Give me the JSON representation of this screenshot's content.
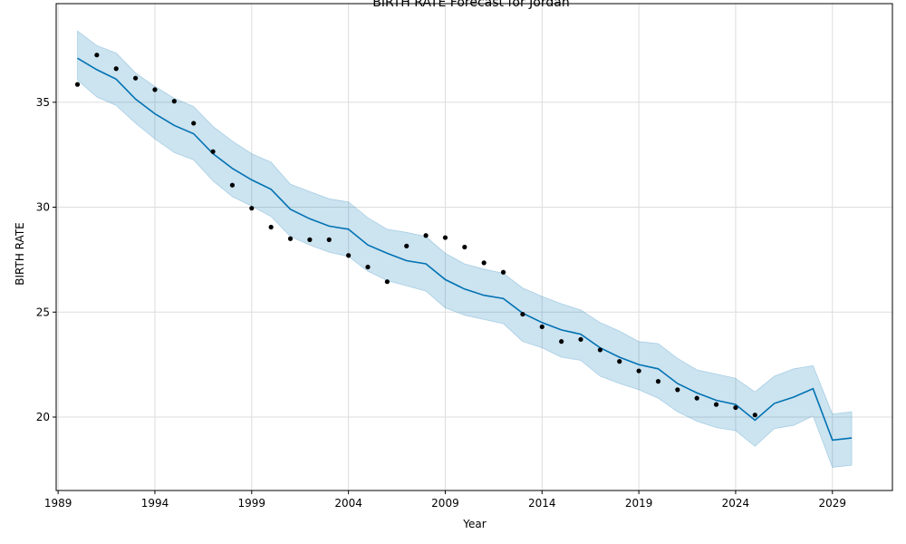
{
  "chart_data": {
    "type": "line",
    "title": "BIRTH RATE Forecast for Jordan",
    "xlabel": "Year",
    "ylabel": "BIRTH RATE",
    "xlim": [
      1988.9,
      2032.1
    ],
    "ylim": [
      16.5,
      39.7
    ],
    "grid": true,
    "x_ticks": [
      1989,
      1994,
      1999,
      2004,
      2009,
      2014,
      2019,
      2024,
      2029
    ],
    "y_ticks": [
      20,
      25,
      30,
      35
    ],
    "colors": {
      "forecast": "#0072B2",
      "band": "#0072B2",
      "actual": "#000000",
      "grid": "#dddddd"
    },
    "forecast": {
      "x": [
        1990,
        1991,
        1992,
        1993,
        1994,
        1995,
        1996,
        1997,
        1998,
        1999,
        2000,
        2001,
        2002,
        2003,
        2004,
        2005,
        2006,
        2007,
        2008,
        2009,
        2010,
        2011,
        2012,
        2013,
        2014,
        2015,
        2016,
        2017,
        2018,
        2019,
        2020,
        2021,
        2022,
        2023,
        2024,
        2025,
        2026,
        2027,
        2028,
        2029,
        2030
      ],
      "yhat": [
        37.1,
        36.55,
        36.1,
        35.15,
        34.45,
        33.9,
        33.5,
        32.55,
        31.85,
        31.3,
        30.85,
        29.9,
        29.45,
        29.1,
        28.95,
        28.2,
        27.8,
        27.45,
        27.3,
        26.55,
        26.1,
        25.8,
        25.65,
        24.95,
        24.5,
        24.15,
        23.95,
        23.3,
        22.85,
        22.5,
        22.3,
        21.6,
        21.15,
        20.8,
        20.6,
        19.85,
        20.65,
        20.95,
        21.35,
        18.9,
        19.0
      ],
      "lower": [
        36.05,
        35.25,
        34.85,
        34.0,
        33.25,
        32.6,
        32.25,
        31.25,
        30.5,
        30.05,
        29.55,
        28.6,
        28.2,
        27.85,
        27.65,
        26.95,
        26.5,
        26.25,
        26.0,
        25.2,
        24.85,
        24.65,
        24.45,
        23.6,
        23.3,
        22.85,
        22.7,
        21.95,
        21.6,
        21.3,
        20.9,
        20.25,
        19.8,
        19.5,
        19.35,
        18.6,
        19.45,
        19.6,
        20.05,
        17.6,
        17.7
      ],
      "upper": [
        38.4,
        37.7,
        37.35,
        36.4,
        35.75,
        35.2,
        34.8,
        33.85,
        33.15,
        32.55,
        32.15,
        31.1,
        30.75,
        30.4,
        30.25,
        29.5,
        28.95,
        28.8,
        28.6,
        27.8,
        27.3,
        27.05,
        26.85,
        26.15,
        25.75,
        25.4,
        25.1,
        24.5,
        24.1,
        23.6,
        23.5,
        22.8,
        22.25,
        22.05,
        21.85,
        21.2,
        21.95,
        22.3,
        22.45,
        20.15,
        20.25
      ]
    },
    "actual": {
      "x": [
        1990,
        1991,
        1992,
        1993,
        1994,
        1995,
        1996,
        1997,
        1998,
        1999,
        2000,
        2001,
        2002,
        2003,
        2004,
        2005,
        2006,
        2007,
        2008,
        2009,
        2010,
        2011,
        2012,
        2013,
        2014,
        2015,
        2016,
        2017,
        2018,
        2019,
        2020,
        2021,
        2022,
        2023,
        2024,
        2025
      ],
      "y": [
        35.85,
        37.25,
        36.6,
        36.15,
        35.6,
        35.05,
        34.0,
        32.65,
        31.05,
        29.95,
        29.05,
        28.5,
        28.45,
        28.45,
        27.7,
        27.15,
        26.45,
        28.15,
        28.65,
        28.55,
        28.1,
        27.35,
        26.9,
        24.9,
        24.3,
        23.6,
        23.7,
        23.2,
        22.65,
        22.2,
        21.7,
        21.3,
        20.9,
        20.6,
        20.45,
        20.1
      ]
    }
  }
}
